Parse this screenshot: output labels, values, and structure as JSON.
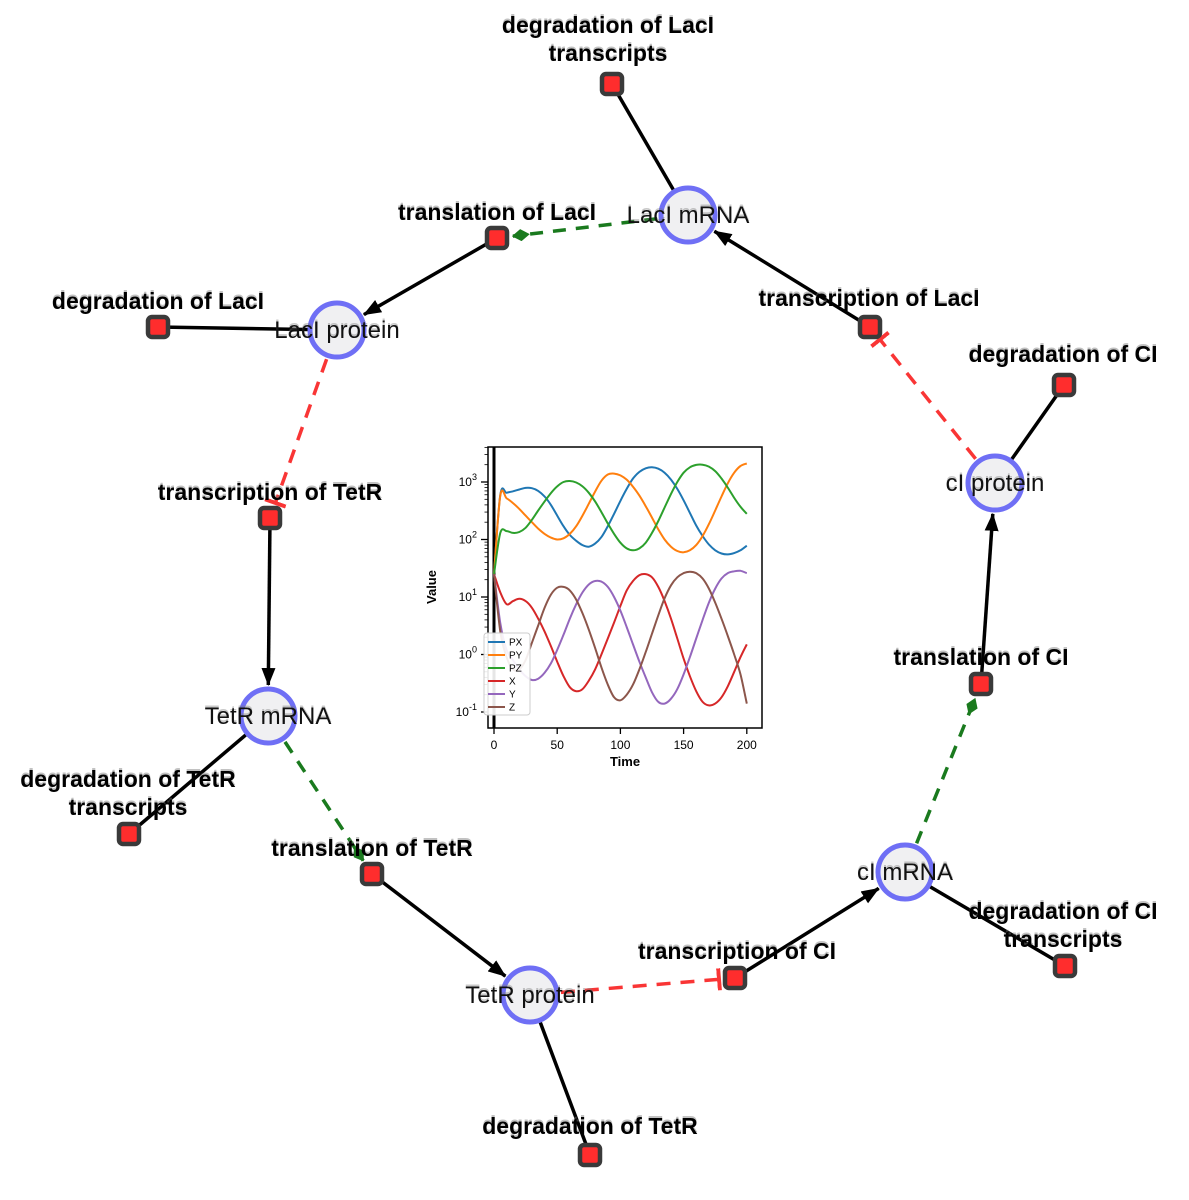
{
  "diagram": {
    "species": [
      {
        "id": "laci-mrna",
        "label": "LacI mRNA"
      },
      {
        "id": "laci-protein",
        "label": "LacI protein"
      },
      {
        "id": "tetr-mrna",
        "label": "TetR mRNA"
      },
      {
        "id": "tetr-protein",
        "label": "TetR protein"
      },
      {
        "id": "ci-mrna",
        "label": "cI mRNA"
      },
      {
        "id": "ci-protein",
        "label": "cI protein"
      }
    ],
    "reactions": [
      {
        "id": "deg-laci-transcripts",
        "lines": [
          "degradation of LacI",
          "transcripts"
        ]
      },
      {
        "id": "translation-laci",
        "lines": [
          "translation of LacI"
        ]
      },
      {
        "id": "deg-laci",
        "lines": [
          "degradation of LacI"
        ]
      },
      {
        "id": "transcription-laci",
        "lines": [
          "transcription of LacI"
        ]
      },
      {
        "id": "transcription-tetr",
        "lines": [
          "transcription of TetR"
        ]
      },
      {
        "id": "deg-tetr-transcripts",
        "lines": [
          "degradation of TetR",
          "transcripts"
        ]
      },
      {
        "id": "translation-tetr",
        "lines": [
          "translation of TetR"
        ]
      },
      {
        "id": "deg-tetr",
        "lines": [
          "degradation of TetR"
        ]
      },
      {
        "id": "transcription-ci",
        "lines": [
          "transcription of CI"
        ]
      },
      {
        "id": "deg-ci-transcripts",
        "lines": [
          "degradation of CI",
          "transcripts"
        ]
      },
      {
        "id": "translation-ci",
        "lines": [
          "translation of CI"
        ]
      },
      {
        "id": "deg-ci",
        "lines": [
          "degradation of CI"
        ]
      }
    ],
    "colors": {
      "species_fill": "#f0f0f2",
      "species_stroke": "#6f6ff5",
      "reaction_fill": "#ff2d2d",
      "reaction_stroke": "#3a3a3a",
      "edge_black": "#000000",
      "edge_activation_green": "#1a7a1e",
      "edge_inhibition_red": "#f93535"
    }
  },
  "chart_data": {
    "type": "line",
    "yscale": "log",
    "title": "",
    "xlabel": "Time",
    "ylabel": "Value",
    "xticks": [
      0,
      50,
      100,
      150,
      200
    ],
    "ytick_exponents": [
      -1,
      0,
      1,
      2,
      3
    ],
    "xlim": [
      -5,
      212
    ],
    "legend_position": "lower left",
    "grid": false,
    "init_line_x": 0,
    "x": [
      0,
      5,
      10,
      15,
      20,
      25,
      30,
      35,
      40,
      45,
      50,
      55,
      60,
      65,
      70,
      75,
      80,
      85,
      90,
      95,
      100,
      105,
      110,
      115,
      120,
      125,
      130,
      135,
      140,
      145,
      150,
      155,
      160,
      165,
      170,
      175,
      180,
      185,
      190,
      195,
      200
    ],
    "series": [
      {
        "name": "PX",
        "color": "#1f77b4",
        "values": [
          25,
          600,
          650,
          690,
          740,
          790,
          780,
          700,
          560,
          400,
          260,
          170,
          120,
          95,
          80,
          75,
          85,
          110,
          170,
          280,
          470,
          760,
          1150,
          1500,
          1730,
          1800,
          1700,
          1450,
          1100,
          760,
          480,
          290,
          175,
          115,
          82,
          65,
          57,
          55,
          58,
          65,
          78
        ]
      },
      {
        "name": "PY",
        "color": "#ff7f0e",
        "values": [
          25,
          580,
          520,
          430,
          340,
          260,
          200,
          155,
          125,
          108,
          100,
          105,
          125,
          170,
          260,
          420,
          680,
          1050,
          1350,
          1400,
          1300,
          1100,
          830,
          580,
          380,
          240,
          150,
          100,
          75,
          63,
          60,
          65,
          80,
          115,
          185,
          320,
          560,
          950,
          1450,
          1900,
          2100
        ]
      },
      {
        "name": "PZ",
        "color": "#2ca02c",
        "values": [
          25,
          130,
          140,
          130,
          135,
          160,
          220,
          320,
          460,
          640,
          840,
          1000,
          1040,
          980,
          840,
          650,
          460,
          300,
          190,
          125,
          88,
          70,
          65,
          70,
          88,
          130,
          210,
          360,
          620,
          1000,
          1450,
          1800,
          1980,
          2000,
          1850,
          1550,
          1150,
          800,
          530,
          370,
          280
        ]
      },
      {
        "name": "X",
        "color": "#d62728",
        "values": [
          25,
          12,
          7.5,
          8.5,
          9.3,
          8.5,
          6.5,
          4.2,
          2.5,
          1.4,
          0.75,
          0.42,
          0.27,
          0.23,
          0.25,
          0.35,
          0.55,
          1.0,
          1.9,
          3.6,
          7,
          13,
          19,
          24,
          25,
          22,
          15,
          8.5,
          4.2,
          1.9,
          0.85,
          0.42,
          0.23,
          0.15,
          0.13,
          0.14,
          0.18,
          0.28,
          0.5,
          0.9,
          1.5
        ]
      },
      {
        "name": "Y",
        "color": "#9467bd",
        "values": [
          25,
          3.5,
          1.2,
          0.8,
          0.55,
          0.42,
          0.36,
          0.38,
          0.48,
          0.7,
          1.2,
          2.2,
          4.2,
          7.5,
          12,
          16.5,
          19,
          18.5,
          15,
          10,
          5.8,
          3,
          1.5,
          0.75,
          0.4,
          0.22,
          0.15,
          0.14,
          0.17,
          0.25,
          0.45,
          0.9,
          1.9,
          4,
          8,
          14,
          21,
          26,
          28,
          28.5,
          26
        ]
      },
      {
        "name": "Z",
        "color": "#8c564b",
        "values": [
          25,
          2.5,
          0.9,
          0.55,
          0.55,
          0.8,
          1.6,
          3.2,
          6.5,
          11,
          14.5,
          15,
          13,
          9,
          5.2,
          2.7,
          1.3,
          0.6,
          0.3,
          0.18,
          0.16,
          0.2,
          0.3,
          0.55,
          1.1,
          2.3,
          4.8,
          9.5,
          16,
          22,
          26,
          27.5,
          26,
          21,
          14,
          8,
          4.2,
          2.1,
          1.0,
          0.45,
          0.14
        ]
      }
    ]
  }
}
